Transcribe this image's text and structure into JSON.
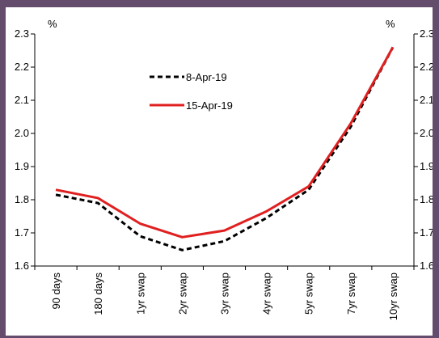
{
  "chart_data": {
    "type": "line",
    "categories": [
      "90 days",
      "180 days",
      "1yr swap",
      "2yr swap",
      "3yr swap",
      "4yr swap",
      "5yr swap",
      "7yr swap",
      "10yr swap"
    ],
    "series": [
      {
        "name": "8-Apr-19",
        "values": [
          1.815,
          1.79,
          1.69,
          1.648,
          1.675,
          1.745,
          1.83,
          2.02,
          2.26
        ],
        "color": "#000000",
        "dash": "dashed"
      },
      {
        "name": "15-Apr-19",
        "values": [
          1.83,
          1.805,
          1.728,
          1.687,
          1.707,
          1.765,
          1.84,
          2.03,
          2.26
        ],
        "color": "#e02020",
        "dash": "solid"
      }
    ],
    "ylim": [
      1.6,
      2.3
    ],
    "y_ticks": [
      "1.6",
      "1.7",
      "1.8",
      "1.9",
      "2.0",
      "2.1",
      "2.2",
      "2.3"
    ],
    "left_unit": "%",
    "right_unit": "%",
    "right_axis": true,
    "legend_position": "upper-left",
    "grid": false
  }
}
